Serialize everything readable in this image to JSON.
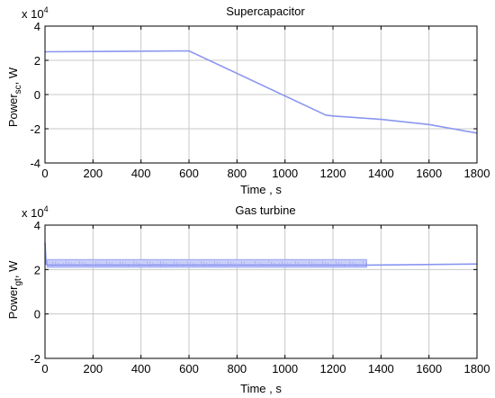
{
  "chart_data": [
    {
      "type": "line",
      "title": "Supercapacitor",
      "xlabel": "Time , s",
      "ylabel_main": "Power",
      "ylabel_sub": "sc",
      "ylabel_tail": ", W",
      "exponent_base": "x 10",
      "exponent_power": "4",
      "xlim": [
        0,
        1800
      ],
      "ylim": [
        -40000,
        40000
      ],
      "x_ticks": [
        0,
        200,
        400,
        600,
        800,
        1000,
        1200,
        1400,
        1600,
        1800
      ],
      "y_ticks": [
        -4,
        -2,
        0,
        2,
        4
      ],
      "grid": true,
      "series_color": "#8a96f0",
      "series": [
        {
          "x": [
            0,
            600,
            1170,
            1200,
            1400,
            1600,
            1800
          ],
          "y": [
            25000,
            25500,
            -12000,
            -12500,
            -14500,
            -17500,
            -22500
          ]
        }
      ]
    },
    {
      "type": "line",
      "title": "Gas turbine",
      "xlabel": "Time , s",
      "ylabel_main": "Power",
      "ylabel_sub": "gt",
      "ylabel_tail": ", W",
      "exponent_base": "x 10",
      "exponent_power": "4",
      "xlim": [
        0,
        1800
      ],
      "ylim": [
        -20000,
        40000
      ],
      "x_ticks": [
        0,
        200,
        400,
        600,
        800,
        1000,
        1200,
        1400,
        1600,
        1800
      ],
      "y_ticks": [
        -2,
        0,
        2,
        4
      ],
      "grid": true,
      "series_color": "#8a96f0",
      "series": [
        {
          "x": [
            0,
            5,
            10,
            1340,
            1800
          ],
          "y": [
            32000,
            22500,
            22000,
            22000,
            22500
          ],
          "band_x": [
            10,
            1340
          ],
          "band_y": [
            21000,
            24500
          ]
        }
      ]
    }
  ]
}
